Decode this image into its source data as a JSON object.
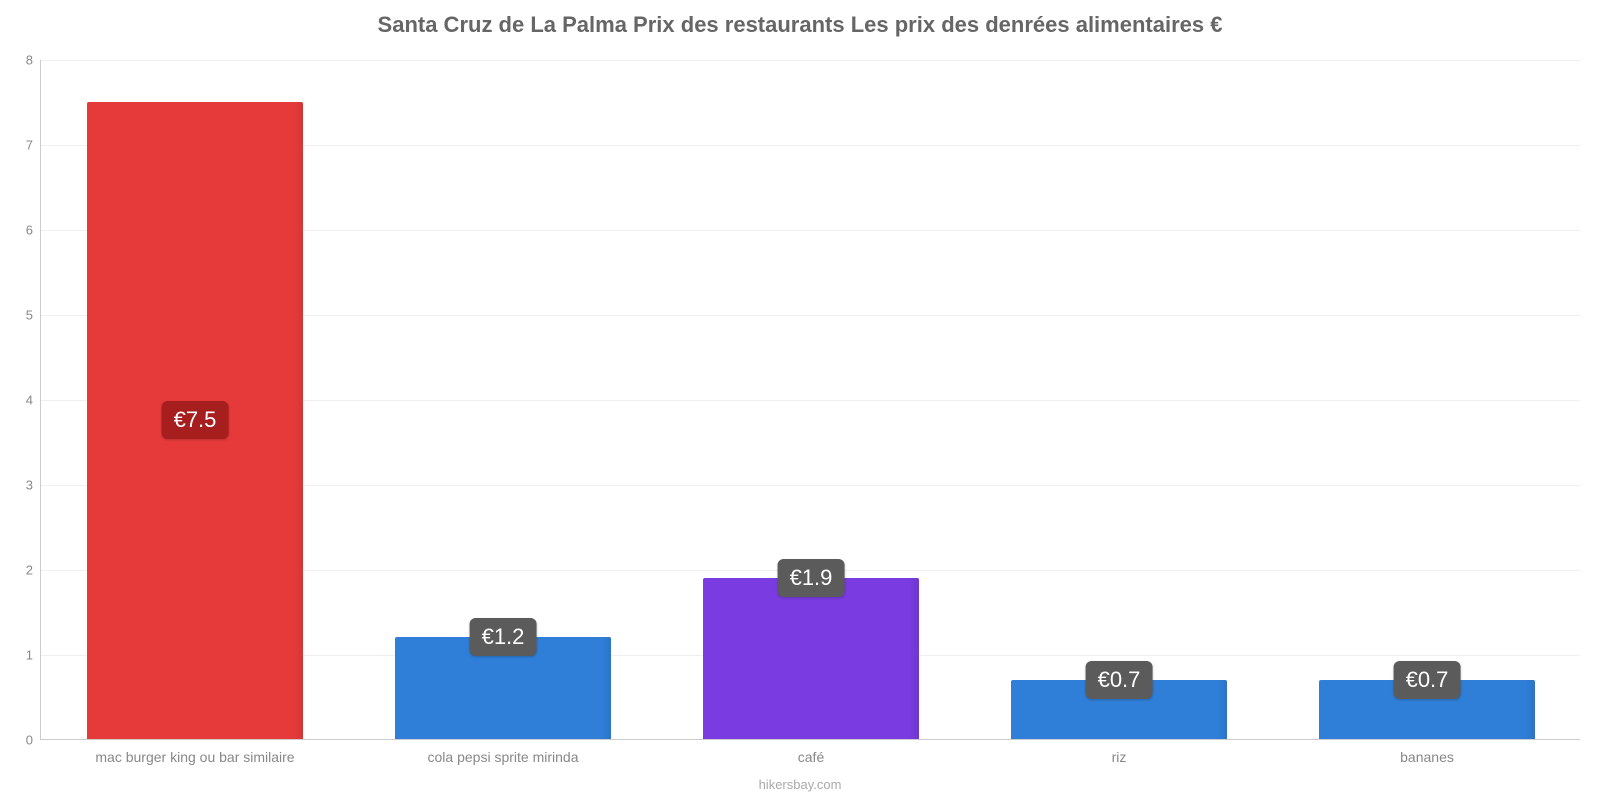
{
  "chart": {
    "type": "bar",
    "title": "Santa Cruz de La Palma Prix des restaurants Les prix des denrées alimentaires €",
    "title_fontsize": 22,
    "title_color": "#666666",
    "attribution": "hikersbay.com",
    "attribution_color": "#aaaaaa",
    "background_color": "#ffffff",
    "grid_color": "#f0f0f0",
    "axis_color": "#cccccc",
    "ylim": [
      0,
      8
    ],
    "ytick_step": 1,
    "yticks": [
      "0",
      "1",
      "2",
      "3",
      "4",
      "5",
      "6",
      "7",
      "8"
    ],
    "ytick_color": "#888888",
    "ytick_fontsize": 13,
    "xtick_color": "#888888",
    "xtick_fontsize": 14,
    "bar_width_ratio": 0.7,
    "value_label_fontsize": 22,
    "value_label_text_color": "#ffffff",
    "currency_symbol": "€",
    "bars": [
      {
        "category": "mac burger king ou bar similaire",
        "value": 7.5,
        "value_label": "€7.5",
        "bar_color": "#e63a3a",
        "badge_color": "#a71e1e"
      },
      {
        "category": "cola pepsi sprite mirinda",
        "value": 1.2,
        "value_label": "€1.2",
        "bar_color": "#2f7ed8",
        "badge_color": "#5b5b5b"
      },
      {
        "category": "café",
        "value": 1.9,
        "value_label": "€1.9",
        "bar_color": "#7a3be0",
        "badge_color": "#5b5b5b"
      },
      {
        "category": "riz",
        "value": 0.7,
        "value_label": "€0.7",
        "bar_color": "#2f7ed8",
        "badge_color": "#5b5b5b"
      },
      {
        "category": "bananes",
        "value": 0.7,
        "value_label": "€0.7",
        "bar_color": "#2f7ed8",
        "badge_color": "#5b5b5b"
      }
    ]
  }
}
